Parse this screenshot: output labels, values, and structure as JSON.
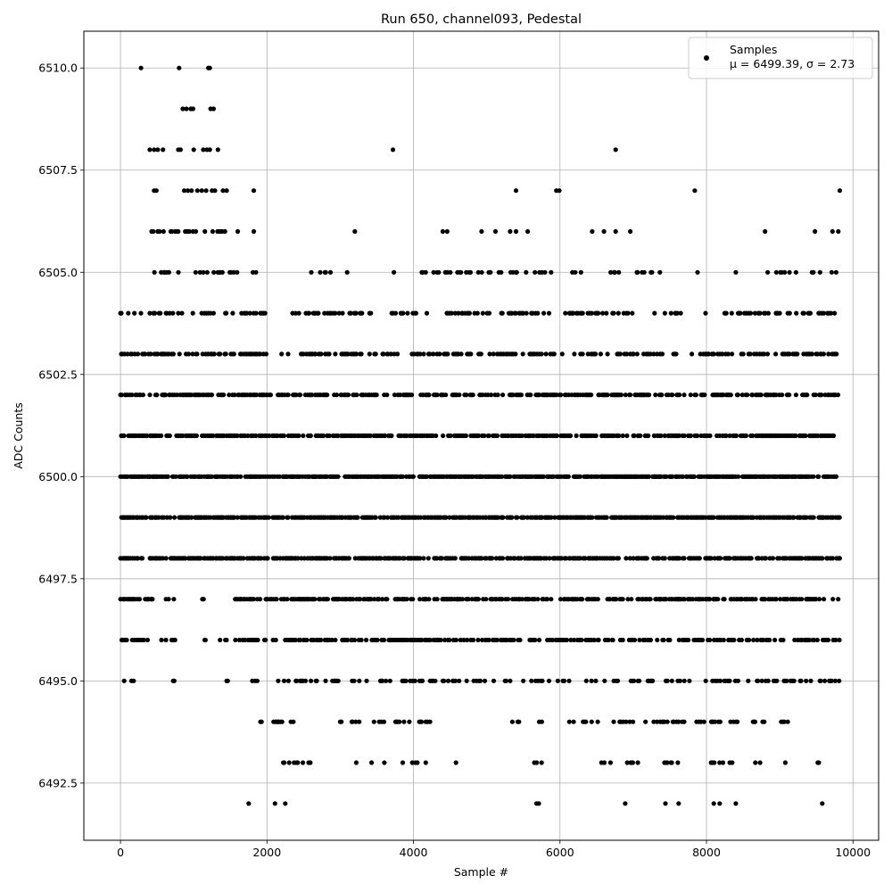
{
  "chart_data": {
    "type": "scatter",
    "title": "Run 650, channel093, Pedestal",
    "xlabel": "Sample #",
    "ylabel": "ADC Counts",
    "xlim": [
      -500,
      10350
    ],
    "ylim": [
      6491.1,
      6510.9
    ],
    "xticks": [
      0,
      2000,
      4000,
      6000,
      8000,
      10000
    ],
    "xtick_labels": [
      "0",
      "2000",
      "4000",
      "6000",
      "8000",
      "10000"
    ],
    "yticks": [
      6492.5,
      6495.0,
      6497.5,
      6500.0,
      6502.5,
      6505.0,
      6507.5,
      6510.0
    ],
    "ytick_labels": [
      "6492.5",
      "6495.0",
      "6497.5",
      "6500.0",
      "6502.5",
      "6505.0",
      "6507.5",
      "6510.0"
    ],
    "grid": true,
    "legend_position": "top-right",
    "series": [
      {
        "name": "Samples",
        "stats_label": "μ = 6499.39, σ = 2.73",
        "color": "#000000",
        "marker": "circle",
        "n_samples": 9820,
        "mean": 6499.39,
        "sigma": 2.73,
        "sparse_points": [
          [
            280,
            6510
          ],
          [
            800,
            6510
          ],
          [
            1200,
            6510
          ],
          [
            1220,
            6510
          ],
          [
            850,
            6509
          ],
          [
            900,
            6509
          ],
          [
            960,
            6509
          ],
          [
            990,
            6509
          ],
          [
            1230,
            6509
          ],
          [
            1270,
            6509
          ],
          [
            400,
            6508
          ],
          [
            460,
            6508
          ],
          [
            510,
            6508
          ],
          [
            580,
            6508
          ],
          [
            790,
            6508
          ],
          [
            820,
            6508
          ],
          [
            1000,
            6508
          ],
          [
            1130,
            6508
          ],
          [
            1180,
            6508
          ],
          [
            1220,
            6508
          ],
          [
            1330,
            6508
          ],
          [
            3720,
            6508
          ],
          [
            6760,
            6508
          ],
          [
            460,
            6507
          ],
          [
            490,
            6507
          ],
          [
            870,
            6507
          ],
          [
            920,
            6507
          ],
          [
            970,
            6507
          ],
          [
            1050,
            6507
          ],
          [
            1110,
            6507
          ],
          [
            1170,
            6507
          ],
          [
            1250,
            6507
          ],
          [
            1290,
            6507
          ],
          [
            1400,
            6507
          ],
          [
            1450,
            6507
          ],
          [
            1820,
            6507
          ],
          [
            5400,
            6507
          ],
          [
            5950,
            6507
          ],
          [
            5990,
            6507
          ],
          [
            7840,
            6507
          ],
          [
            9820,
            6507
          ],
          [
            1750,
            6492
          ],
          [
            2110,
            6492
          ],
          [
            2250,
            6492
          ],
          [
            5680,
            6492
          ],
          [
            5710,
            6492
          ],
          [
            6890,
            6492
          ],
          [
            7440,
            6492
          ],
          [
            7620,
            6492
          ],
          [
            8100,
            6492
          ],
          [
            8180,
            6492
          ],
          [
            8400,
            6492
          ],
          [
            9580,
            6492
          ]
        ],
        "dense_levels": [
          {
            "level": 6506,
            "segments": [
              [
                380,
                1450
              ]
            ],
            "density": 0.06,
            "extra": [
              1600,
              1820,
              3200,
              4400,
              4460,
              4930,
              5120,
              5320,
              5400,
              5560,
              6440,
              6600,
              6760,
              6960,
              8800,
              9480,
              9720,
              9800
            ]
          },
          {
            "level": 6505,
            "segments": [
              [
                0,
                60
              ],
              [
                300,
                1900
              ],
              [
                2480,
                3100
              ],
              [
                3700,
                3780
              ],
              [
                4050,
                5800
              ],
              [
                5850,
                5900
              ],
              [
                6150,
                7420
              ],
              [
                7850,
                7940
              ],
              [
                8400,
                8480
              ],
              [
                8800,
                9820
              ]
            ],
            "density": 0.04
          },
          {
            "level": 6504,
            "segments": [
              [
                0,
                1850
              ],
              [
                1850,
                2000
              ],
              [
                2350,
                3300
              ],
              [
                3400,
                4200
              ],
              [
                4350,
                5200
              ],
              [
                5200,
                5950
              ],
              [
                6050,
                7150
              ],
              [
                7250,
                7700
              ],
              [
                7850,
                8000
              ],
              [
                8200,
                9820
              ]
            ],
            "density": 0.05
          },
          {
            "level": 6503,
            "segments": [
              [
                0,
                2050
              ],
              [
                2200,
                2300
              ],
              [
                2450,
                3300
              ],
              [
                3400,
                3800
              ],
              [
                3980,
                7400
              ],
              [
                7550,
                7650
              ],
              [
                7800,
                9820
              ]
            ],
            "density": 0.07
          },
          {
            "level": 6502,
            "segments": [
              [
                0,
                2050
              ],
              [
                2150,
                9820
              ]
            ],
            "density": 0.08
          },
          {
            "level": 6501,
            "segments": [
              [
                0,
                9820
              ]
            ],
            "density": 0.09
          },
          {
            "level": 6500,
            "segments": [
              [
                0,
                9820
              ]
            ],
            "density": 0.12
          },
          {
            "level": 6499,
            "segments": [
              [
                0,
                9820
              ]
            ],
            "density": 0.11
          },
          {
            "level": 6498,
            "segments": [
              [
                0,
                9820
              ]
            ],
            "density": 0.09
          },
          {
            "level": 6497,
            "segments": [
              [
                0,
                450
              ],
              [
                550,
                750
              ],
              [
                1100,
                1150
              ],
              [
                1550,
                9820
              ]
            ],
            "density": 0.08
          },
          {
            "level": 6496,
            "segments": [
              [
                0,
                400
              ],
              [
                550,
                650
              ],
              [
                700,
                750
              ],
              [
                1150,
                1200
              ],
              [
                1350,
                1450
              ],
              [
                1550,
                2000
              ],
              [
                2050,
                9820
              ]
            ],
            "density": 0.07
          },
          {
            "level": 6495,
            "segments": [
              [
                50,
                70
              ],
              [
                150,
                250
              ],
              [
                350,
                370
              ],
              [
                600,
                620
              ],
              [
                720,
                740
              ],
              [
                1450,
                1470
              ],
              [
                1800,
                1900
              ],
              [
                2100,
                2700
              ],
              [
                2800,
                3000
              ],
              [
                3100,
                4350
              ],
              [
                4400,
                5100
              ],
              [
                5200,
                5400
              ],
              [
                5500,
                6200
              ],
              [
                6300,
                7100
              ],
              [
                7200,
                7350
              ],
              [
                7400,
                7800
              ],
              [
                7900,
                9820
              ]
            ],
            "density": 0.05
          },
          {
            "level": 6494,
            "segments": [
              [
                50,
                70
              ],
              [
                120,
                200
              ],
              [
                650,
                680
              ],
              [
                1600,
                1620
              ],
              [
                1750,
                2000
              ],
              [
                2080,
                2450
              ],
              [
                3000,
                3600
              ],
              [
                3700,
                4250
              ],
              [
                4800,
                4850
              ],
              [
                5300,
                5450
              ],
              [
                5650,
                5780
              ],
              [
                6100,
                6550
              ],
              [
                6650,
                6750
              ],
              [
                6800,
                7000
              ],
              [
                7150,
                8200
              ],
              [
                8300,
                8450
              ],
              [
                8600,
                9150
              ],
              [
                9450,
                9480
              ]
            ],
            "density": 0.04
          },
          {
            "level": 6493,
            "segments": [
              [
                230,
                260
              ],
              [
                2080,
                2100
              ],
              [
                2200,
                2600
              ],
              [
                3200,
                3450
              ],
              [
                3550,
                3650
              ],
              [
                3800,
                4200
              ],
              [
                4580,
                4600
              ],
              [
                5650,
                5750
              ],
              [
                6100,
                6120
              ],
              [
                6450,
                6700
              ],
              [
                6900,
                7100
              ],
              [
                7350,
                7700
              ],
              [
                8050,
                8400
              ],
              [
                8600,
                8750
              ],
              [
                8950,
                9100
              ],
              [
                9520,
                9540
              ]
            ],
            "density": 0.03
          }
        ]
      }
    ]
  }
}
